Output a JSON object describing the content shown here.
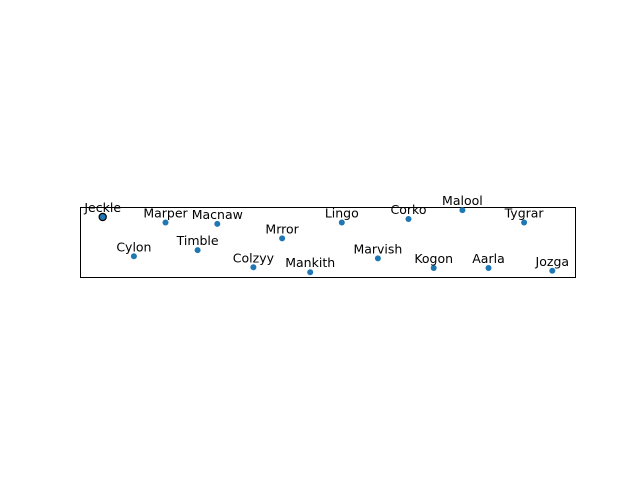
{
  "chart_data": {
    "type": "scatter",
    "title": "",
    "xlabel": "",
    "ylabel": "",
    "grid": false,
    "axes_visible": false,
    "xlim": [
      0,
      100
    ],
    "ylim": [
      0,
      100
    ],
    "point_color": "#1f77b4",
    "highlight_edge_color": "#000000",
    "points": [
      {
        "label": "Jeckle",
        "x": 4.4,
        "y": 87,
        "highlighted": true
      },
      {
        "label": "Marper",
        "x": 17.1,
        "y": 79,
        "highlighted": false
      },
      {
        "label": "Macnaw",
        "x": 27.6,
        "y": 77,
        "highlighted": false
      },
      {
        "label": "Mrror",
        "x": 40.7,
        "y": 56,
        "highlighted": false
      },
      {
        "label": "Lingo",
        "x": 52.8,
        "y": 79,
        "highlighted": false
      },
      {
        "label": "Corko",
        "x": 66.3,
        "y": 84,
        "highlighted": false
      },
      {
        "label": "Malool",
        "x": 77.2,
        "y": 97,
        "highlighted": false
      },
      {
        "label": "Tygrar",
        "x": 89.7,
        "y": 79,
        "highlighted": false
      },
      {
        "label": "Cylon",
        "x": 10.7,
        "y": 30,
        "highlighted": false
      },
      {
        "label": "Timble",
        "x": 23.6,
        "y": 39,
        "highlighted": false
      },
      {
        "label": "Colzyy",
        "x": 34.9,
        "y": 14,
        "highlighted": false
      },
      {
        "label": "Mankith",
        "x": 46.4,
        "y": 7,
        "highlighted": false
      },
      {
        "label": "Marvish",
        "x": 60.1,
        "y": 27,
        "highlighted": false
      },
      {
        "label": "Kogon",
        "x": 71.4,
        "y": 13,
        "highlighted": false
      },
      {
        "label": "Aarla",
        "x": 82.5,
        "y": 13,
        "highlighted": false
      },
      {
        "label": "Jozga",
        "x": 95.4,
        "y": 9,
        "highlighted": false
      }
    ]
  }
}
